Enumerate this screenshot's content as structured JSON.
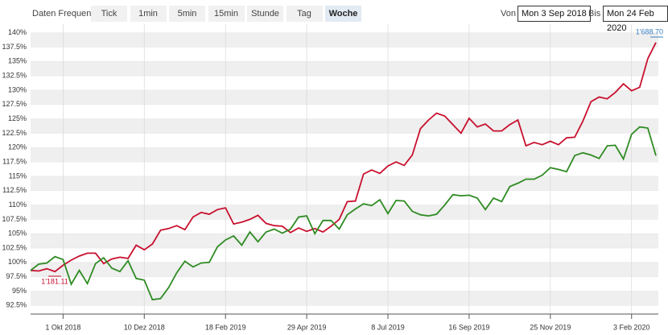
{
  "toolbar": {
    "label": "Daten Frequenz",
    "buttons": [
      "Tick",
      "1min",
      "5min",
      "15min",
      "Stunde",
      "Tag",
      "Woche"
    ],
    "selected": "Woche",
    "from_label": "Von",
    "from": "Mon 3 Sep 2018",
    "to_label": "Bis",
    "to": "Mon 24 Feb 2020"
  },
  "chart_data": {
    "type": "line",
    "categories": [
      null,
      null,
      null,
      null,
      "1 Okt 2018",
      null,
      null,
      null,
      null,
      null,
      null,
      null,
      null,
      null,
      "10 Dez 2018",
      null,
      null,
      null,
      null,
      null,
      null,
      null,
      null,
      null,
      "18 Feb 2019",
      null,
      null,
      null,
      null,
      null,
      null,
      null,
      null,
      null,
      "29 Apr 2019",
      null,
      null,
      null,
      null,
      null,
      null,
      null,
      null,
      null,
      "8 Jul 2019",
      null,
      null,
      null,
      null,
      null,
      null,
      null,
      null,
      null,
      "16 Sep 2019",
      null,
      null,
      null,
      null,
      null,
      null,
      null,
      null,
      null,
      "25 Nov 2019",
      null,
      null,
      null,
      null,
      null,
      null,
      null,
      null,
      null,
      "3 Feb 2020",
      null,
      null,
      null
    ],
    "series": [
      {
        "color": "#c8102e",
        "values": [
          98.6,
          98.5,
          98.9,
          98.4,
          99.5,
          100.4,
          101.1,
          101.6,
          101.6,
          99.8,
          100.6,
          100.9,
          100.7,
          103.0,
          102.2,
          103.2,
          105.6,
          105.9,
          106.4,
          105.7,
          107.9,
          108.7,
          108.4,
          109.2,
          109.5,
          106.7,
          107.0,
          107.5,
          108.2,
          106.8,
          106.4,
          106.3,
          105.2,
          106.0,
          105.4,
          105.9,
          105.3,
          106.3,
          107.5,
          110.6,
          110.7,
          115.4,
          116.1,
          115.5,
          116.8,
          117.5,
          116.9,
          118.7,
          123.3,
          124.8,
          126.0,
          125.5,
          124.0,
          122.5,
          125.1,
          123.6,
          124.1,
          122.9,
          122.9,
          124.0,
          124.8,
          120.3,
          120.9,
          120.5,
          121.1,
          120.5,
          121.7,
          121.8,
          124.6,
          128.0,
          128.8,
          128.5,
          129.6,
          131.1,
          129.9,
          130.5,
          135.5,
          138.3
        ]
      },
      {
        "color": "#2e8b22",
        "values": [
          98.6,
          99.7,
          99.9,
          101.0,
          100.5,
          96.2,
          98.6,
          96.3,
          99.8,
          100.8,
          99.0,
          98.4,
          100.3,
          97.2,
          96.9,
          93.5,
          93.7,
          95.6,
          98.2,
          100.2,
          99.2,
          99.9,
          100.0,
          102.7,
          103.9,
          104.6,
          103.0,
          105.3,
          103.6,
          105.3,
          105.8,
          105.1,
          105.8,
          107.9,
          108.1,
          105.0,
          107.3,
          107.3,
          105.8,
          108.3,
          109.3,
          110.2,
          109.9,
          110.9,
          108.5,
          110.8,
          110.7,
          108.9,
          108.3,
          108.1,
          108.4,
          110.0,
          111.8,
          111.6,
          111.7,
          111.2,
          109.2,
          111.2,
          110.6,
          113.2,
          113.8,
          114.5,
          114.5,
          115.2,
          116.5,
          116.2,
          115.8,
          118.6,
          119.1,
          118.7,
          118.1,
          120.3,
          120.4,
          118.0,
          122.3,
          123.6,
          123.4,
          118.6
        ]
      }
    ],
    "annotations": [
      {
        "text": "1'688.70",
        "color": "#3a7fc1"
      },
      {
        "text": "1'181.11",
        "color": "#c8102e"
      }
    ],
    "ylim": [
      91,
      141.5
    ],
    "yticks": [
      {
        "value": 92.5,
        "label": "92.5%"
      },
      {
        "value": 95,
        "label": "95%"
      },
      {
        "value": 97.5,
        "label": "97.5%"
      },
      {
        "value": 100,
        "label": "100%"
      },
      {
        "value": 102.5,
        "label": "102.5%"
      },
      {
        "value": 105,
        "label": "105%"
      },
      {
        "value": 107.5,
        "label": "107.5%"
      },
      {
        "value": 110,
        "label": "110%"
      },
      {
        "value": 112.5,
        "label": "112.5%"
      },
      {
        "value": 115,
        "label": "115%"
      },
      {
        "value": 117.5,
        "label": "117.5%"
      },
      {
        "value": 120,
        "label": "120%"
      },
      {
        "value": 122.5,
        "label": "122.5%"
      },
      {
        "value": 125,
        "label": "125%"
      },
      {
        "value": 127.5,
        "label": "127.5%"
      },
      {
        "value": 130,
        "label": "130%"
      },
      {
        "value": 132.5,
        "label": "132.5%"
      },
      {
        "value": 135,
        "label": "135%"
      },
      {
        "value": 137.5,
        "label": "137.5%"
      },
      {
        "value": 140,
        "label": "140%"
      }
    ],
    "grid": true
  }
}
